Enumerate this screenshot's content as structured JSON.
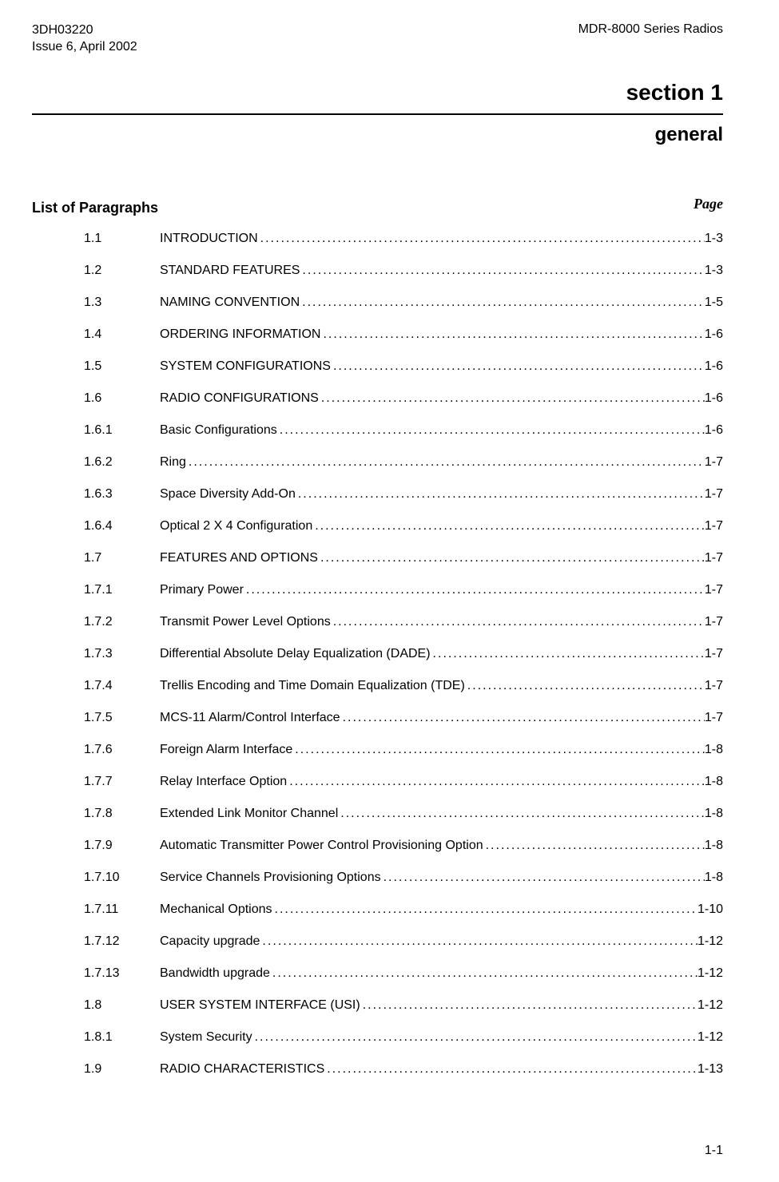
{
  "header": {
    "doc_number": "3DH03220",
    "issue": "Issue 6, April 2002",
    "product": "MDR-8000 Series Radios"
  },
  "section": {
    "title": "section  1",
    "subtitle": "general"
  },
  "list_header": {
    "label": "List of Paragraphs",
    "page_label": "Page"
  },
  "toc": [
    {
      "num": "1.1",
      "title": "INTRODUCTION",
      "page": "1-3"
    },
    {
      "num": "1.2",
      "title": "STANDARD FEATURES",
      "page": "1-3"
    },
    {
      "num": "1.3",
      "title": "NAMING CONVENTION",
      "page": "1-5"
    },
    {
      "num": "1.4",
      "title": "ORDERING INFORMATION",
      "page": "1-6"
    },
    {
      "num": "1.5",
      "title": "SYSTEM CONFIGURATIONS",
      "page": "1-6"
    },
    {
      "num": "1.6",
      "title": "RADIO CONFIGURATIONS",
      "page": "1-6"
    },
    {
      "num": "1.6.1",
      "title": "Basic Configurations",
      "page": "1-6"
    },
    {
      "num": "1.6.2",
      "title": "Ring",
      "page": "1-7"
    },
    {
      "num": "1.6.3",
      "title": "Space Diversity Add-On",
      "page": "1-7"
    },
    {
      "num": "1.6.4",
      "title": "Optical 2 X 4 Configuration",
      "page": "1-7"
    },
    {
      "num": "1.7",
      "title": "FEATURES AND OPTIONS",
      "page": "1-7"
    },
    {
      "num": "1.7.1",
      "title": "Primary Power",
      "page": "1-7"
    },
    {
      "num": "1.7.2",
      "title": "Transmit Power Level Options",
      "page": "1-7"
    },
    {
      "num": "1.7.3",
      "title": "Differential Absolute Delay Equalization (DADE)",
      "page": "1-7"
    },
    {
      "num": "1.7.4",
      "title": "Trellis Encoding and Time Domain Equalization (TDE)",
      "page": "1-7"
    },
    {
      "num": "1.7.5",
      "title": "MCS-11 Alarm/Control Interface",
      "page": "1-7"
    },
    {
      "num": "1.7.6",
      "title": "Foreign Alarm Interface",
      "page": "1-8"
    },
    {
      "num": "1.7.7",
      "title": "Relay Interface Option",
      "page": "1-8"
    },
    {
      "num": "1.7.8",
      "title": "Extended Link Monitor Channel",
      "page": "1-8"
    },
    {
      "num": "1.7.9",
      "title": "Automatic Transmitter Power Control Provisioning Option",
      "page": "1-8"
    },
    {
      "num": "1.7.10",
      "title": "Service Channels Provisioning Options",
      "page": "1-8"
    },
    {
      "num": "1.7.11",
      "title": "Mechanical Options",
      "page": "1-10"
    },
    {
      "num": "1.7.12",
      "title": "Capacity upgrade",
      "page": "1-12"
    },
    {
      "num": "1.7.13",
      "title": "Bandwidth upgrade",
      "page": "1-12"
    },
    {
      "num": "1.8",
      "title": "USER SYSTEM INTERFACE (USI)",
      "page": "1-12"
    },
    {
      "num": "1.8.1",
      "title": "System Security",
      "page": "1-12"
    },
    {
      "num": "1.9",
      "title": "RADIO CHARACTERISTICS",
      "page": "1-13"
    }
  ],
  "footer": {
    "page_number": "1-1"
  },
  "styles": {
    "background_color": "#ffffff",
    "text_color": "#000000",
    "font_family": "Arial, Helvetica, sans-serif",
    "header_fontsize": 16,
    "section_title_fontsize": 28,
    "section_subtitle_fontsize": 24,
    "list_header_fontsize": 18,
    "toc_fontsize": 16,
    "toc_line_spacing": 22
  }
}
